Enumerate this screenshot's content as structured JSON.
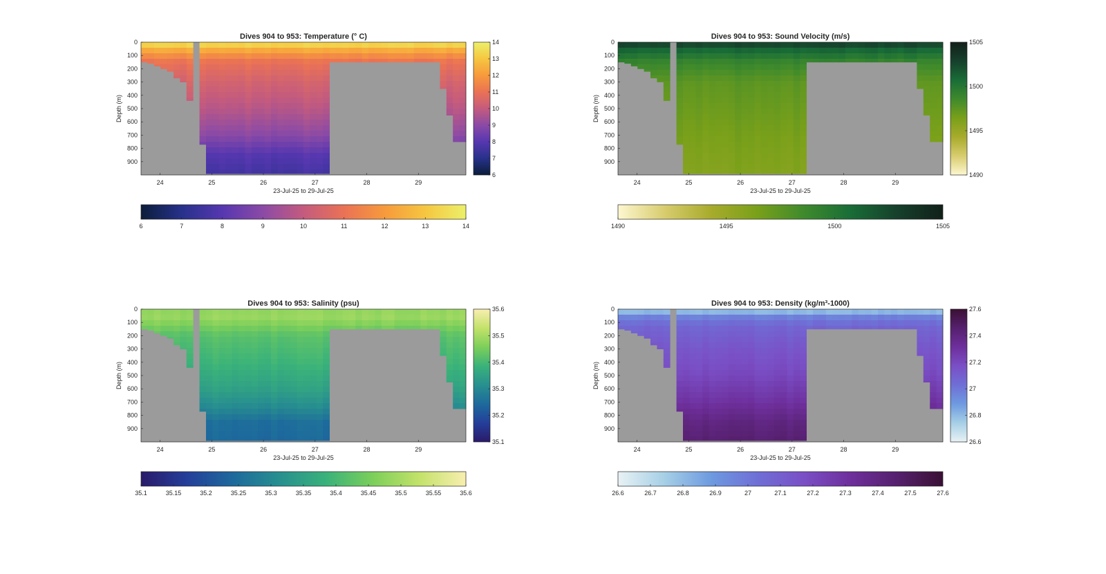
{
  "figure": {
    "background": "#ffffff",
    "mask_color": "#9b9b9b",
    "shared_xlabel": "23-Jul-25 to 29-Jul-25",
    "shared_ylabel": "Depth (m)",
    "x_ticks": [
      "24",
      "25",
      "26",
      "27",
      "28",
      "29"
    ],
    "y_ticks": [
      "0",
      "100",
      "200",
      "300",
      "400",
      "500",
      "600",
      "700",
      "800",
      "900"
    ]
  },
  "chart_data": [
    {
      "type": "heatmap",
      "id": "temperature",
      "title": "Dives 904 to 953: Temperature (° C)",
      "xlabel": "23-Jul-25 to 29-Jul-25",
      "ylabel": "Depth (m)",
      "xlim": [
        23.63,
        29.92
      ],
      "ylim": [
        0,
        1000
      ],
      "y_reversed": true,
      "x_ticks": [
        24,
        25,
        26,
        27,
        28,
        29
      ],
      "y_ticks": [
        0,
        100,
        200,
        300,
        400,
        500,
        600,
        700,
        800,
        900
      ],
      "colorbar": {
        "range": [
          6,
          14
        ],
        "ticks": [
          "6",
          "7",
          "8",
          "9",
          "10",
          "11",
          "12",
          "13",
          "14"
        ],
        "horizontal_ticks": [
          "6",
          "7",
          "8",
          "9",
          "10",
          "11",
          "12",
          "13",
          "14"
        ],
        "colors": [
          "#0b1d3a",
          "#27318a",
          "#5637b0",
          "#8b4aa6",
          "#c45b7e",
          "#ea7255",
          "#f79a3c",
          "#f6c640",
          "#ecf06a"
        ]
      },
      "profile": {
        "depth": [
          0,
          30,
          80,
          150,
          300,
          500,
          700,
          850,
          1000
        ],
        "values": [
          13.9,
          13.0,
          12.0,
          11.0,
          10.4,
          9.8,
          9.0,
          8.0,
          7.6
        ]
      }
    },
    {
      "type": "heatmap",
      "id": "sound-velocity",
      "title": "Dives 904 to 953: Sound Velocity (m/s)",
      "xlabel": "23-Jul-25 to 29-Jul-25",
      "ylabel": "Depth (m)",
      "xlim": [
        23.63,
        29.92
      ],
      "ylim": [
        0,
        1000
      ],
      "y_reversed": true,
      "x_ticks": [
        24,
        25,
        26,
        27,
        28,
        29
      ],
      "y_ticks": [
        0,
        100,
        200,
        300,
        400,
        500,
        600,
        700,
        800,
        900
      ],
      "colorbar": {
        "range": [
          1490,
          1505
        ],
        "ticks": [
          "1490",
          "1495",
          "1500",
          "1505"
        ],
        "horizontal_ticks": [
          "1490",
          "1495",
          "1500",
          "1505"
        ],
        "colors": [
          "#fdf7d0",
          "#d8cc6e",
          "#a8ab2c",
          "#79a01a",
          "#3f8a2c",
          "#196d37",
          "#16402c",
          "#11201a"
        ]
      },
      "profile": {
        "depth": [
          0,
          20,
          60,
          150,
          300,
          500,
          700,
          850,
          1000
        ],
        "values": [
          1503.5,
          1502.5,
          1501.0,
          1499.0,
          1497.5,
          1497.0,
          1496.5,
          1496.2,
          1496.0
        ]
      }
    },
    {
      "type": "heatmap",
      "id": "salinity",
      "title": "Dives 904 to 953: Salinity (psu)",
      "xlabel": "23-Jul-25 to 29-Jul-25",
      "ylabel": "Depth (m)",
      "xlim": [
        23.63,
        29.92
      ],
      "ylim": [
        0,
        1000
      ],
      "y_reversed": true,
      "x_ticks": [
        24,
        25,
        26,
        27,
        28,
        29
      ],
      "y_ticks": [
        0,
        100,
        200,
        300,
        400,
        500,
        600,
        700,
        800,
        900
      ],
      "colorbar": {
        "range": [
          35.1,
          35.6
        ],
        "ticks": [
          "35.1",
          "35.2",
          "35.3",
          "35.4",
          "35.5",
          "35.6"
        ],
        "horizontal_ticks": [
          "35.1",
          "35.15",
          "35.2",
          "35.25",
          "35.3",
          "35.35",
          "35.4",
          "35.45",
          "35.5",
          "35.55",
          "35.6"
        ],
        "colors": [
          "#2a1a6a",
          "#243f9a",
          "#1d6a9c",
          "#28908f",
          "#3ab27a",
          "#7ccf5a",
          "#c3e26a",
          "#f8eeb0"
        ]
      },
      "profile": {
        "depth": [
          0,
          30,
          100,
          200,
          400,
          600,
          750,
          850,
          1000
        ],
        "values": [
          35.44,
          35.5,
          35.47,
          35.42,
          35.39,
          35.35,
          35.3,
          35.25,
          35.24
        ]
      }
    },
    {
      "type": "heatmap",
      "id": "density",
      "title": "Dives 904 to 953: Density (kg/m³-1000)",
      "xlabel": "23-Jul-25 to 29-Jul-25",
      "ylabel": "Depth (m)",
      "xlim": [
        23.63,
        29.92
      ],
      "ylim": [
        0,
        1000
      ],
      "y_reversed": true,
      "x_ticks": [
        24,
        25,
        26,
        27,
        28,
        29
      ],
      "y_ticks": [
        0,
        100,
        200,
        300,
        400,
        500,
        600,
        700,
        800,
        900
      ],
      "colorbar": {
        "range": [
          26.6,
          27.6
        ],
        "ticks": [
          "26.6",
          "26.8",
          "27",
          "27.2",
          "27.4",
          "27.6"
        ],
        "horizontal_ticks": [
          "26.6",
          "26.7",
          "26.8",
          "26.9",
          "27",
          "27.1",
          "27.2",
          "27.3",
          "27.4",
          "27.5",
          "27.6"
        ],
        "colors": [
          "#e8f2f4",
          "#a6cfe6",
          "#6e9ae0",
          "#6f6fd6",
          "#7a4fc6",
          "#6e2f9c",
          "#56206e",
          "#3a1034"
        ]
      },
      "profile": {
        "depth": [
          0,
          30,
          70,
          150,
          300,
          500,
          700,
          850,
          1000
        ],
        "values": [
          26.7,
          26.85,
          27.0,
          27.08,
          27.14,
          27.2,
          27.3,
          27.4,
          27.45
        ]
      }
    }
  ]
}
